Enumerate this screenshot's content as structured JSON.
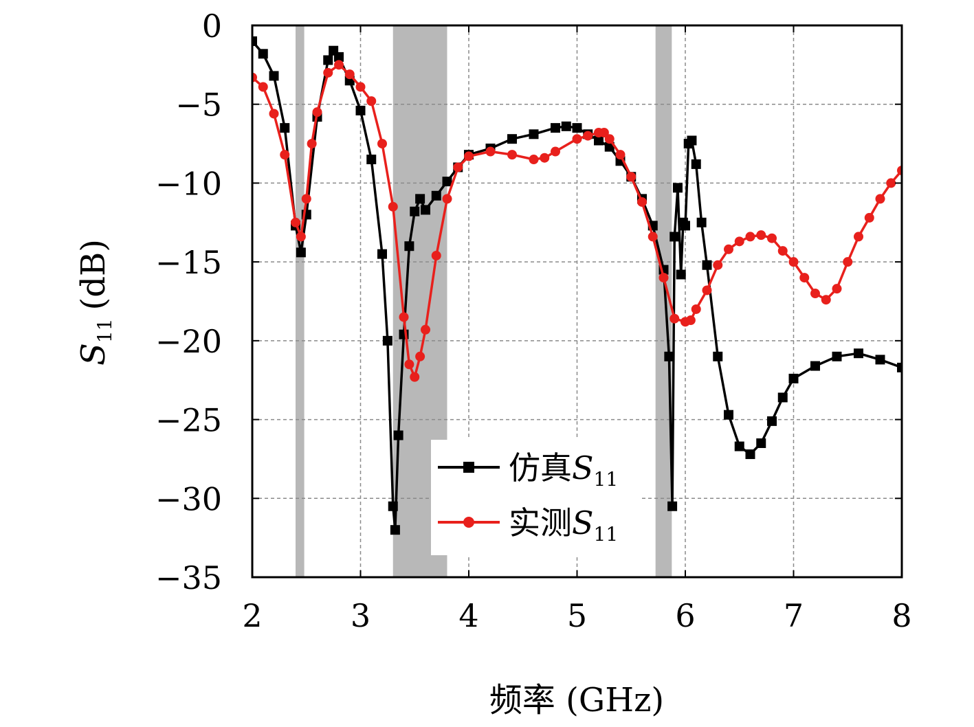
{
  "chart_data": {
    "type": "line",
    "xlabel": "频率 (GHz)",
    "ylabel_main": "S",
    "ylabel_sub": "11",
    "ylabel_unit": "(dB)",
    "xlim": [
      2,
      8
    ],
    "ylim": [
      -35,
      0
    ],
    "xticks": [
      2,
      3,
      4,
      5,
      6,
      7,
      8
    ],
    "yticks": [
      0,
      -5,
      -10,
      -15,
      -20,
      -25,
      -30,
      -35
    ],
    "xtick_labels": [
      "2",
      "3",
      "4",
      "5",
      "6",
      "7",
      "8"
    ],
    "ytick_labels": [
      "0",
      "−5",
      "−10",
      "−15",
      "−20",
      "−25",
      "−30",
      "−35"
    ],
    "grid": true,
    "legend_position": "bottom-center",
    "shaded_bands": [
      [
        2.4,
        2.48
      ],
      [
        3.3,
        3.8
      ],
      [
        5.725,
        5.875
      ]
    ],
    "series": [
      {
        "name_main": "仿真",
        "name_s": "S",
        "name_sub": "11",
        "color": "#000000",
        "marker": "square",
        "x": [
          2.0,
          2.1,
          2.2,
          2.3,
          2.4,
          2.45,
          2.5,
          2.6,
          2.7,
          2.75,
          2.8,
          2.9,
          3.0,
          3.1,
          3.2,
          3.25,
          3.3,
          3.32,
          3.35,
          3.4,
          3.45,
          3.5,
          3.55,
          3.6,
          3.7,
          3.8,
          3.9,
          4.0,
          4.2,
          4.4,
          4.6,
          4.8,
          4.9,
          5.0,
          5.1,
          5.2,
          5.3,
          5.4,
          5.5,
          5.6,
          5.7,
          5.8,
          5.85,
          5.88,
          5.9,
          5.93,
          5.96,
          5.98,
          6.0,
          6.03,
          6.06,
          6.1,
          6.15,
          6.2,
          6.3,
          6.4,
          6.5,
          6.6,
          6.7,
          6.8,
          6.9,
          7.0,
          7.2,
          7.4,
          7.6,
          7.8,
          8.0
        ],
        "y": [
          -1.0,
          -1.8,
          -3.2,
          -6.5,
          -12.7,
          -14.4,
          -12.0,
          -5.8,
          -2.2,
          -1.6,
          -2.0,
          -3.5,
          -5.4,
          -8.5,
          -14.5,
          -20.0,
          -30.5,
          -32.0,
          -26.0,
          -19.6,
          -14.0,
          -11.8,
          -11.0,
          -11.7,
          -10.8,
          -9.9,
          -9.0,
          -8.2,
          -7.8,
          -7.2,
          -6.9,
          -6.5,
          -6.4,
          -6.5,
          -6.9,
          -7.3,
          -7.7,
          -8.6,
          -9.6,
          -11.0,
          -12.7,
          -15.5,
          -21.0,
          -30.5,
          -13.4,
          -10.3,
          -15.8,
          -12.5,
          -12.7,
          -7.5,
          -7.3,
          -8.8,
          -12.5,
          -15.2,
          -21.0,
          -24.7,
          -26.7,
          -27.2,
          -26.5,
          -25.1,
          -23.6,
          -22.4,
          -21.6,
          -21.0,
          -20.8,
          -21.2,
          -21.7
        ]
      },
      {
        "name_main": "实测",
        "name_s": "S",
        "name_sub": "11",
        "color": "#e8201c",
        "marker": "circle",
        "x": [
          2.0,
          2.1,
          2.2,
          2.3,
          2.4,
          2.45,
          2.5,
          2.55,
          2.6,
          2.7,
          2.8,
          2.9,
          3.0,
          3.1,
          3.2,
          3.3,
          3.4,
          3.45,
          3.5,
          3.55,
          3.6,
          3.7,
          3.8,
          3.9,
          4.0,
          4.2,
          4.4,
          4.6,
          4.7,
          4.8,
          5.0,
          5.1,
          5.2,
          5.25,
          5.3,
          5.4,
          5.5,
          5.6,
          5.7,
          5.8,
          5.9,
          6.0,
          6.05,
          6.1,
          6.2,
          6.3,
          6.4,
          6.5,
          6.6,
          6.7,
          6.8,
          6.9,
          7.0,
          7.1,
          7.2,
          7.3,
          7.4,
          7.5,
          7.6,
          7.7,
          7.8,
          7.9,
          8.0
        ],
        "y": [
          -3.3,
          -3.9,
          -5.6,
          -8.2,
          -12.5,
          -13.4,
          -11.0,
          -7.5,
          -5.5,
          -3.0,
          -2.5,
          -3.1,
          -3.9,
          -4.8,
          -7.5,
          -11.5,
          -18.5,
          -21.5,
          -22.3,
          -21.0,
          -19.3,
          -14.6,
          -11.0,
          -9.0,
          -8.3,
          -8.0,
          -8.2,
          -8.5,
          -8.4,
          -8.0,
          -7.2,
          -7.0,
          -6.8,
          -6.8,
          -7.2,
          -8.2,
          -9.6,
          -11.2,
          -13.4,
          -16.0,
          -18.6,
          -18.8,
          -18.7,
          -18.0,
          -16.8,
          -15.2,
          -14.2,
          -13.7,
          -13.4,
          -13.3,
          -13.5,
          -14.3,
          -15.0,
          -16.0,
          -17.0,
          -17.4,
          -16.7,
          -15.0,
          -13.4,
          -12.2,
          -11.0,
          -10.0,
          -9.2
        ]
      }
    ]
  }
}
